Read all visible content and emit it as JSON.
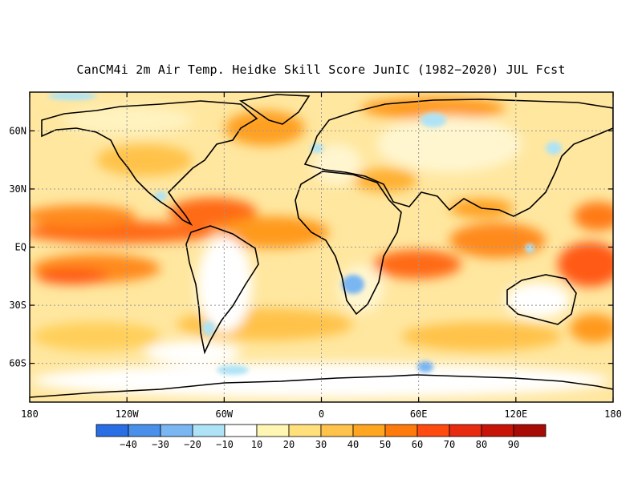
{
  "title": "CanCM4i 2m Air Temp. Heidke Skill Score JunIC (1982−2020) JUL Fcst",
  "lat_ticks": [
    {
      "lat": 60,
      "label": "60N"
    },
    {
      "lat": 30,
      "label": "30N"
    },
    {
      "lat": 0,
      "label": "EQ"
    },
    {
      "lat": -30,
      "label": "30S"
    },
    {
      "lat": -60,
      "label": "60S"
    }
  ],
  "lon_ticks": [
    {
      "lon": -180,
      "label": "180"
    },
    {
      "lon": -120,
      "label": "120W"
    },
    {
      "lon": -60,
      "label": "60W"
    },
    {
      "lon": 0,
      "label": "0"
    },
    {
      "lon": 60,
      "label": "60E"
    },
    {
      "lon": 120,
      "label": "120E"
    },
    {
      "lon": 180,
      "label": "180"
    }
  ],
  "map_extent": {
    "lon": [
      -180,
      180
    ],
    "lat": [
      -80,
      80
    ]
  },
  "grid": true,
  "colorbar": {
    "bins": [
      {
        "color": "#2a6ee6"
      },
      {
        "color": "#4a90ea"
      },
      {
        "color": "#7ab6f2"
      },
      {
        "color": "#aee3f6"
      },
      {
        "color": "#ffffff"
      },
      {
        "color": "#fff6b3"
      },
      {
        "color": "#ffe07a"
      },
      {
        "color": "#ffc24a"
      },
      {
        "color": "#ffa51f"
      },
      {
        "color": "#ff7a0d"
      },
      {
        "color": "#ff4a10"
      },
      {
        "color": "#e82a10"
      },
      {
        "color": "#c81408"
      },
      {
        "color": "#a80a06"
      }
    ],
    "labels": [
      "−40",
      "−30",
      "−20",
      "−10",
      "10",
      "20",
      "30",
      "40",
      "50",
      "60",
      "70",
      "80",
      "90"
    ]
  }
}
